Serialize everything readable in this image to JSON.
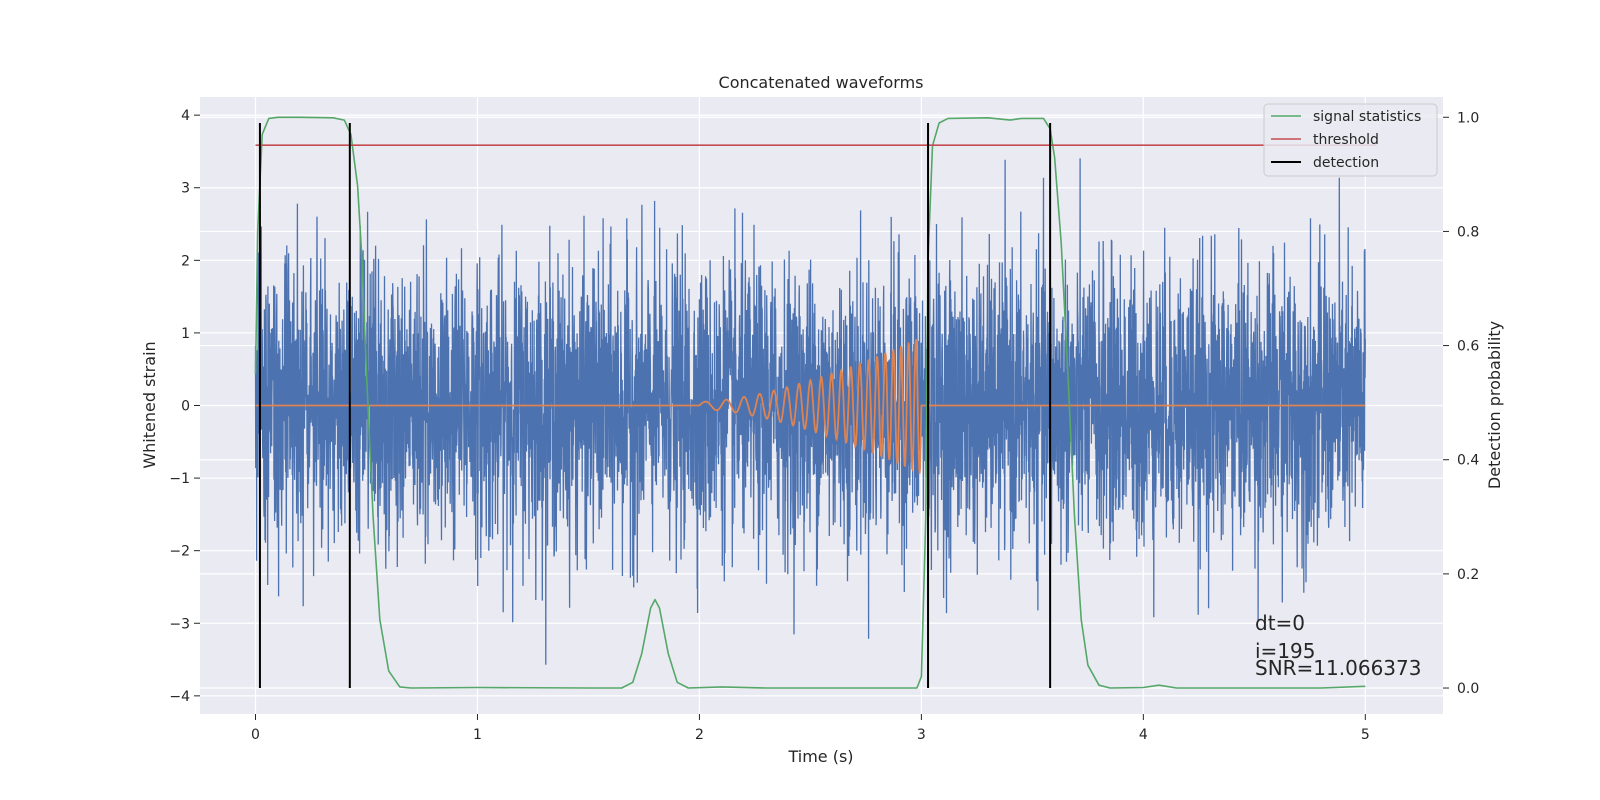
{
  "chart_data": {
    "type": "line",
    "title": "Concatenated waveforms",
    "xlabel": "Time (s)",
    "ylabel": "Whitened strain",
    "ylabel_right": "Detection probability",
    "xlim": [
      -0.25,
      5.35
    ],
    "ylim": [
      -4.25,
      4.25
    ],
    "ylim_right": [
      -0.0455,
      1.0355
    ],
    "x_ticks": [
      "0",
      "1",
      "2",
      "3",
      "4",
      "5"
    ],
    "y_ticks": [
      "4",
      "3",
      "2",
      "1",
      "0",
      "−1",
      "−2",
      "−3",
      "−4"
    ],
    "y_ticks_right": [
      "0.0",
      "0.2",
      "0.4",
      "0.6",
      "0.8",
      "1.0"
    ],
    "grid": true,
    "legend_placement": "top-right",
    "series": [
      {
        "name": "",
        "axis": "left",
        "color": "#4c72b0",
        "kind": "noise",
        "x_range": [
          0,
          5
        ],
        "typical_range": [
          -1.9,
          1.9
        ],
        "extreme_range": [
          -3.9,
          3.6
        ]
      },
      {
        "name": "",
        "axis": "left",
        "color": "#dd8452",
        "kind": "chirp",
        "x_range": [
          0,
          5
        ],
        "chirp_start": 2.0,
        "chirp_end": 3.0,
        "peak_amplitude": 0.95
      },
      {
        "name": "signal statistics",
        "axis": "right",
        "color": "#55a868",
        "points": [
          [
            0,
            0.55
          ],
          [
            0.01,
            0.8
          ],
          [
            0.03,
            0.97
          ],
          [
            0.06,
            0.998
          ],
          [
            0.1,
            1.0
          ],
          [
            0.2,
            1.0
          ],
          [
            0.35,
            0.999
          ],
          [
            0.4,
            0.995
          ],
          [
            0.43,
            0.97
          ],
          [
            0.46,
            0.88
          ],
          [
            0.48,
            0.75
          ],
          [
            0.5,
            0.55
          ],
          [
            0.53,
            0.3
          ],
          [
            0.56,
            0.12
          ],
          [
            0.6,
            0.03
          ],
          [
            0.65,
            0.002
          ],
          [
            0.7,
            0.0
          ],
          [
            1.0,
            0.001
          ],
          [
            1.5,
            0.0
          ],
          [
            1.65,
            0.0
          ],
          [
            1.7,
            0.01
          ],
          [
            1.74,
            0.06
          ],
          [
            1.78,
            0.14
          ],
          [
            1.8,
            0.155
          ],
          [
            1.82,
            0.14
          ],
          [
            1.86,
            0.06
          ],
          [
            1.9,
            0.01
          ],
          [
            1.95,
            0.0
          ],
          [
            2.1,
            0.002
          ],
          [
            2.3,
            0.0
          ],
          [
            2.9,
            0.0
          ],
          [
            2.98,
            0.0
          ],
          [
            3.0,
            0.02
          ],
          [
            3.02,
            0.3
          ],
          [
            3.03,
            0.75
          ],
          [
            3.05,
            0.95
          ],
          [
            3.08,
            0.99
          ],
          [
            3.12,
            0.998
          ],
          [
            3.3,
            0.999
          ],
          [
            3.4,
            0.995
          ],
          [
            3.45,
            0.998
          ],
          [
            3.55,
            0.998
          ],
          [
            3.58,
            0.98
          ],
          [
            3.6,
            0.93
          ],
          [
            3.63,
            0.78
          ],
          [
            3.66,
            0.55
          ],
          [
            3.69,
            0.3
          ],
          [
            3.72,
            0.12
          ],
          [
            3.75,
            0.04
          ],
          [
            3.8,
            0.005
          ],
          [
            3.85,
            0.0
          ],
          [
            4.0,
            0.001
          ],
          [
            4.07,
            0.005
          ],
          [
            4.15,
            0.0
          ],
          [
            4.5,
            0.0
          ],
          [
            4.8,
            0.0
          ],
          [
            5.0,
            0.003
          ]
        ]
      },
      {
        "name": "threshold",
        "axis": "right",
        "color": "#c44e52",
        "points": [
          [
            0,
            0.951
          ],
          [
            5.05,
            0.951
          ]
        ]
      },
      {
        "name": "detection",
        "axis": "right",
        "color": "#000000",
        "kind": "vlines",
        "x": [
          0.02,
          0.425,
          3.03,
          3.58
        ],
        "ymin": 0.0,
        "ymax": 0.99
      }
    ],
    "annotations": [
      "dt=0",
      "i=195",
      "SNR=11.066373"
    ]
  }
}
